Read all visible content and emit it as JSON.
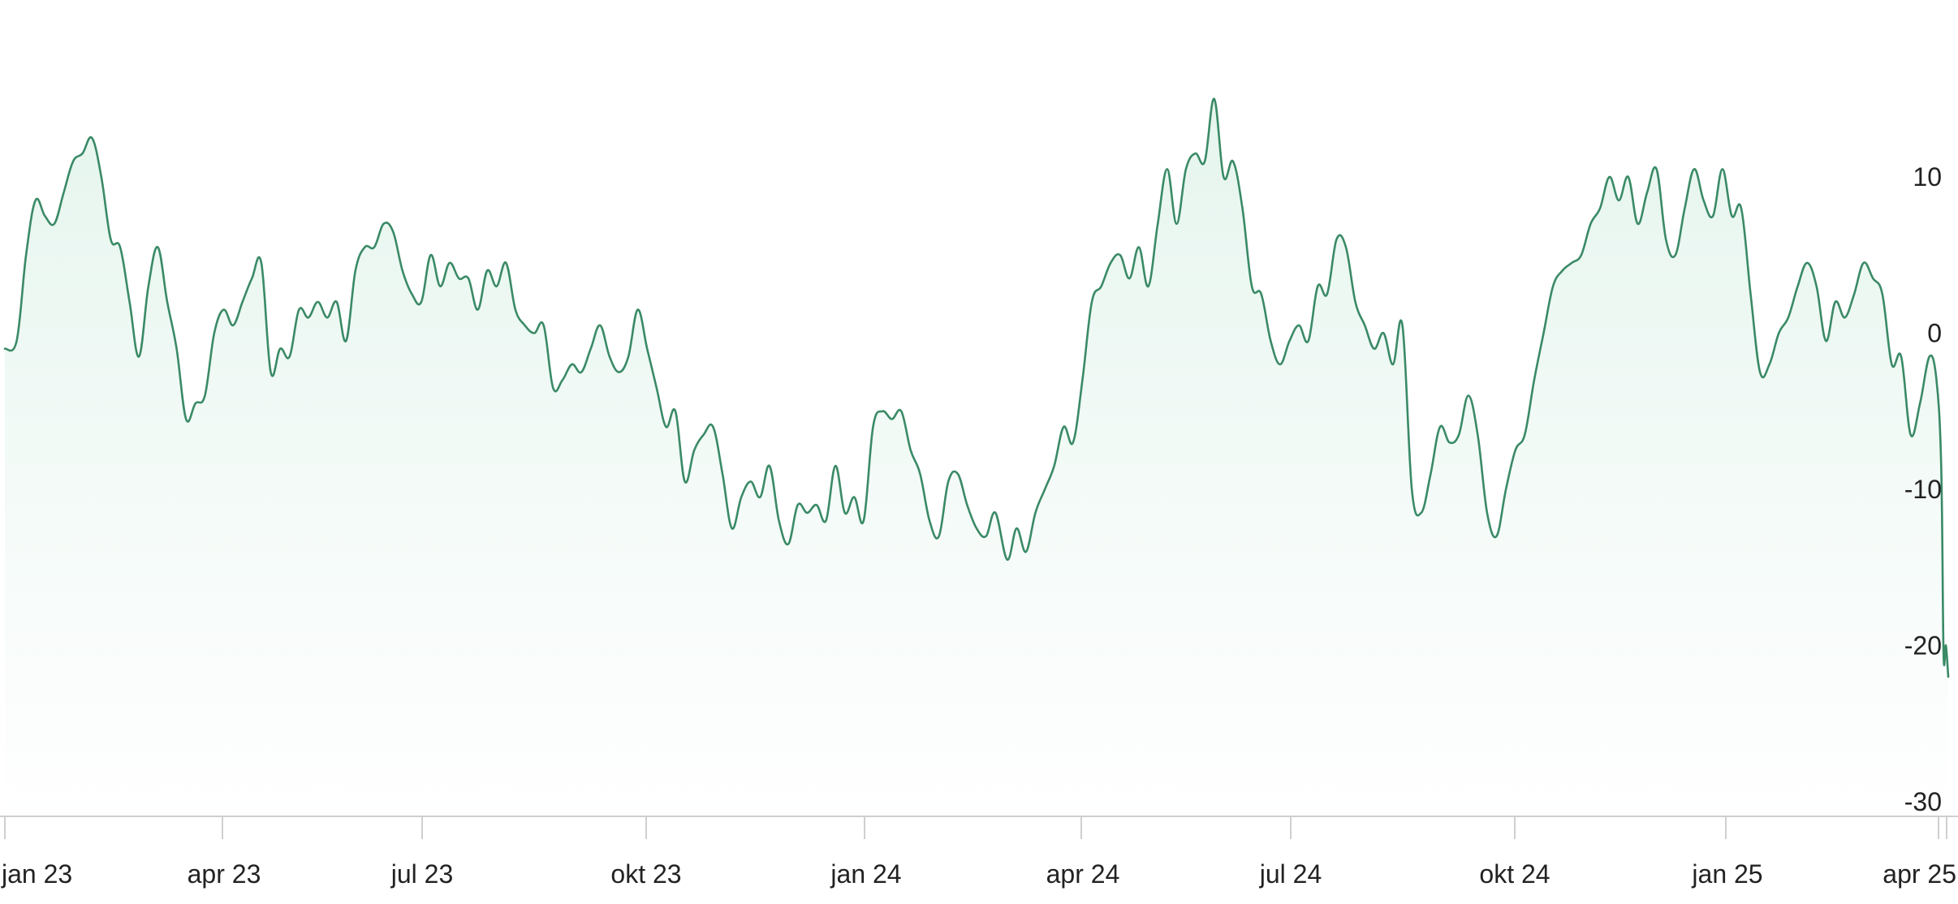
{
  "chart_data": {
    "type": "area",
    "title": "",
    "xlabel": "",
    "ylabel": "",
    "x_tick_labels": [
      "jan 23",
      "apr 23",
      "jul 23",
      "okt 23",
      "jan 24",
      "apr 24",
      "jul 24",
      "okt 24",
      "jan 25",
      "apr 25"
    ],
    "y_tick_labels": [
      "10",
      "0",
      "-10",
      "-20",
      "-30"
    ],
    "y_ticks": [
      10,
      0,
      -10,
      -20,
      -30
    ],
    "ylim": [
      -30,
      20.5
    ],
    "xlim": [
      "2022-12-31",
      "2025-04-05"
    ],
    "grid": false,
    "y_axis_position": "right",
    "series": [
      {
        "color": "#3a8a66",
        "fill_color": "#e8f6ef",
        "points": [
          [
            "2022-12-31",
            -1.0
          ],
          [
            "2023-01-05",
            -0.5
          ],
          [
            "2023-01-09",
            5.0
          ],
          [
            "2023-01-13",
            8.5
          ],
          [
            "2023-01-17",
            7.5
          ],
          [
            "2023-01-21",
            7.0
          ],
          [
            "2023-01-25",
            9.0
          ],
          [
            "2023-01-29",
            11.0
          ],
          [
            "2023-02-02",
            11.5
          ],
          [
            "2023-02-06",
            12.5
          ],
          [
            "2023-02-10",
            10.0
          ],
          [
            "2023-02-14",
            6.0
          ],
          [
            "2023-02-18",
            5.5
          ],
          [
            "2023-02-22",
            2.0
          ],
          [
            "2023-02-26",
            -1.5
          ],
          [
            "2023-03-02",
            3.0
          ],
          [
            "2023-03-06",
            5.5
          ],
          [
            "2023-03-10",
            2.0
          ],
          [
            "2023-03-14",
            -1.0
          ],
          [
            "2023-03-18",
            -5.5
          ],
          [
            "2023-03-22",
            -4.5
          ],
          [
            "2023-03-26",
            -4.0
          ],
          [
            "2023-03-30",
            0.0
          ],
          [
            "2023-04-03",
            1.5
          ],
          [
            "2023-04-07",
            0.5
          ],
          [
            "2023-04-11",
            2.0
          ],
          [
            "2023-04-15",
            3.5
          ],
          [
            "2023-04-19",
            4.5
          ],
          [
            "2023-04-23",
            -2.5
          ],
          [
            "2023-04-27",
            -1.0
          ],
          [
            "2023-05-01",
            -1.5
          ],
          [
            "2023-05-05",
            1.5
          ],
          [
            "2023-05-09",
            1.0
          ],
          [
            "2023-05-13",
            2.0
          ],
          [
            "2023-05-17",
            1.0
          ],
          [
            "2023-05-21",
            2.0
          ],
          [
            "2023-05-25",
            -0.5
          ],
          [
            "2023-05-29",
            4.0
          ],
          [
            "2023-06-02",
            5.5
          ],
          [
            "2023-06-06",
            5.5
          ],
          [
            "2023-06-10",
            7.0
          ],
          [
            "2023-06-14",
            6.5
          ],
          [
            "2023-06-18",
            4.0
          ],
          [
            "2023-06-22",
            2.5
          ],
          [
            "2023-06-26",
            2.0
          ],
          [
            "2023-06-30",
            5.0
          ],
          [
            "2023-07-04",
            3.0
          ],
          [
            "2023-07-08",
            4.5
          ],
          [
            "2023-07-12",
            3.5
          ],
          [
            "2023-07-16",
            3.5
          ],
          [
            "2023-07-20",
            1.5
          ],
          [
            "2023-07-24",
            4.0
          ],
          [
            "2023-07-28",
            3.0
          ],
          [
            "2023-08-01",
            4.5
          ],
          [
            "2023-08-05",
            1.5
          ],
          [
            "2023-08-09",
            0.5
          ],
          [
            "2023-08-13",
            0.0
          ],
          [
            "2023-08-17",
            0.5
          ],
          [
            "2023-08-21",
            -3.5
          ],
          [
            "2023-08-25",
            -3.0
          ],
          [
            "2023-08-29",
            -2.0
          ],
          [
            "2023-09-02",
            -2.5
          ],
          [
            "2023-09-06",
            -1.0
          ],
          [
            "2023-09-10",
            0.5
          ],
          [
            "2023-09-14",
            -1.5
          ],
          [
            "2023-09-18",
            -2.5
          ],
          [
            "2023-09-22",
            -1.5
          ],
          [
            "2023-09-26",
            1.5
          ],
          [
            "2023-09-30",
            -1.0
          ],
          [
            "2023-10-04",
            -3.5
          ],
          [
            "2023-10-08",
            -6.0
          ],
          [
            "2023-10-12",
            -5.0
          ],
          [
            "2023-10-16",
            -9.5
          ],
          [
            "2023-10-20",
            -7.5
          ],
          [
            "2023-10-24",
            -6.5
          ],
          [
            "2023-10-28",
            -6.0
          ],
          [
            "2023-11-01",
            -9.0
          ],
          [
            "2023-11-05",
            -12.5
          ],
          [
            "2023-11-09",
            -10.5
          ],
          [
            "2023-11-13",
            -9.5
          ],
          [
            "2023-11-17",
            -10.5
          ],
          [
            "2023-11-21",
            -8.5
          ],
          [
            "2023-11-25",
            -12.0
          ],
          [
            "2023-11-29",
            -13.5
          ],
          [
            "2023-12-03",
            -11.0
          ],
          [
            "2023-12-07",
            -11.5
          ],
          [
            "2023-12-11",
            -11.0
          ],
          [
            "2023-12-15",
            -12.0
          ],
          [
            "2023-12-19",
            -8.5
          ],
          [
            "2023-12-23",
            -11.5
          ],
          [
            "2023-12-27",
            -10.5
          ],
          [
            "2023-12-31",
            -12.0
          ],
          [
            "2024-01-04",
            -6.0
          ],
          [
            "2024-01-08",
            -5.0
          ],
          [
            "2024-01-12",
            -5.5
          ],
          [
            "2024-01-16",
            -5.0
          ],
          [
            "2024-01-20",
            -7.5
          ],
          [
            "2024-01-24",
            -9.0
          ],
          [
            "2024-01-28",
            -12.0
          ],
          [
            "2024-02-01",
            -13.0
          ],
          [
            "2024-02-05",
            -9.5
          ],
          [
            "2024-02-09",
            -9.0
          ],
          [
            "2024-02-13",
            -11.0
          ],
          [
            "2024-02-17",
            -12.5
          ],
          [
            "2024-02-21",
            -13.0
          ],
          [
            "2024-02-25",
            -11.5
          ],
          [
            "2024-03-01",
            -14.5
          ],
          [
            "2024-03-05",
            -12.5
          ],
          [
            "2024-03-09",
            -14.0
          ],
          [
            "2024-03-13",
            -11.5
          ],
          [
            "2024-03-17",
            -10.0
          ],
          [
            "2024-03-21",
            -8.5
          ],
          [
            "2024-03-25",
            -6.0
          ],
          [
            "2024-03-29",
            -7.0
          ],
          [
            "2024-04-02",
            -3.0
          ],
          [
            "2024-04-06",
            2.0
          ],
          [
            "2024-04-10",
            3.0
          ],
          [
            "2024-04-14",
            4.5
          ],
          [
            "2024-04-18",
            5.0
          ],
          [
            "2024-04-22",
            3.5
          ],
          [
            "2024-04-26",
            5.5
          ],
          [
            "2024-04-30",
            3.0
          ],
          [
            "2024-05-04",
            7.0
          ],
          [
            "2024-05-08",
            10.5
          ],
          [
            "2024-05-12",
            7.0
          ],
          [
            "2024-05-16",
            10.5
          ],
          [
            "2024-05-20",
            11.5
          ],
          [
            "2024-05-24",
            11.0
          ],
          [
            "2024-05-28",
            15.0
          ],
          [
            "2024-06-01",
            10.0
          ],
          [
            "2024-06-05",
            11.0
          ],
          [
            "2024-06-09",
            8.0
          ],
          [
            "2024-06-13",
            3.0
          ],
          [
            "2024-06-17",
            2.5
          ],
          [
            "2024-06-21",
            -0.5
          ],
          [
            "2024-06-25",
            -2.0
          ],
          [
            "2024-06-29",
            -0.5
          ],
          [
            "2024-07-03",
            0.5
          ],
          [
            "2024-07-07",
            -0.5
          ],
          [
            "2024-07-11",
            3.0
          ],
          [
            "2024-07-15",
            2.5
          ],
          [
            "2024-07-19",
            6.0
          ],
          [
            "2024-07-23",
            5.5
          ],
          [
            "2024-07-27",
            2.0
          ],
          [
            "2024-07-31",
            0.5
          ],
          [
            "2024-08-04",
            -1.0
          ],
          [
            "2024-08-08",
            0.0
          ],
          [
            "2024-08-12",
            -2.0
          ],
          [
            "2024-08-16",
            0.5
          ],
          [
            "2024-08-20",
            -10.0
          ],
          [
            "2024-08-24",
            -11.5
          ],
          [
            "2024-08-28",
            -9.0
          ],
          [
            "2024-09-01",
            -6.0
          ],
          [
            "2024-09-05",
            -7.0
          ],
          [
            "2024-09-09",
            -6.5
          ],
          [
            "2024-09-13",
            -4.0
          ],
          [
            "2024-09-17",
            -6.5
          ],
          [
            "2024-09-21",
            -11.5
          ],
          [
            "2024-09-25",
            -13.0
          ],
          [
            "2024-09-29",
            -10.0
          ],
          [
            "2024-10-03",
            -7.5
          ],
          [
            "2024-10-07",
            -6.5
          ],
          [
            "2024-10-11",
            -3.0
          ],
          [
            "2024-10-15",
            0.0
          ],
          [
            "2024-10-19",
            3.0
          ],
          [
            "2024-10-23",
            4.0
          ],
          [
            "2024-10-27",
            4.5
          ],
          [
            "2024-10-31",
            5.0
          ],
          [
            "2024-11-04",
            7.0
          ],
          [
            "2024-11-08",
            8.0
          ],
          [
            "2024-11-12",
            10.0
          ],
          [
            "2024-11-16",
            8.5
          ],
          [
            "2024-11-20",
            10.0
          ],
          [
            "2024-11-24",
            7.0
          ],
          [
            "2024-11-28",
            9.0
          ],
          [
            "2024-12-02",
            10.5
          ],
          [
            "2024-12-06",
            6.0
          ],
          [
            "2024-12-10",
            5.0
          ],
          [
            "2024-12-14",
            8.0
          ],
          [
            "2024-12-18",
            10.5
          ],
          [
            "2024-12-22",
            8.5
          ],
          [
            "2024-12-26",
            7.5
          ],
          [
            "2024-12-30",
            10.5
          ],
          [
            "2025-01-03",
            7.5
          ],
          [
            "2025-01-07",
            8.0
          ],
          [
            "2025-01-11",
            2.5
          ],
          [
            "2025-01-15",
            -2.5
          ],
          [
            "2025-01-19",
            -2.0
          ],
          [
            "2025-01-23",
            0.0
          ],
          [
            "2025-01-27",
            1.0
          ],
          [
            "2025-01-31",
            3.0
          ],
          [
            "2025-02-04",
            4.5
          ],
          [
            "2025-02-08",
            3.0
          ],
          [
            "2025-02-12",
            -0.5
          ],
          [
            "2025-02-16",
            2.0
          ],
          [
            "2025-02-20",
            1.0
          ],
          [
            "2025-02-24",
            2.5
          ],
          [
            "2025-02-28",
            4.5
          ],
          [
            "2025-03-04",
            3.5
          ],
          [
            "2025-03-08",
            2.5
          ],
          [
            "2025-03-12",
            -2.0
          ],
          [
            "2025-03-16",
            -1.5
          ],
          [
            "2025-03-20",
            -6.5
          ],
          [
            "2025-03-24",
            -4.5
          ],
          [
            "2025-03-28",
            -1.5
          ],
          [
            "2025-03-31",
            -3.0
          ],
          [
            "2025-04-02",
            -8.5
          ],
          [
            "2025-04-03",
            -20.5
          ],
          [
            "2025-04-04",
            -20.0
          ],
          [
            "2025-04-05",
            -22.0
          ]
        ]
      }
    ]
  }
}
